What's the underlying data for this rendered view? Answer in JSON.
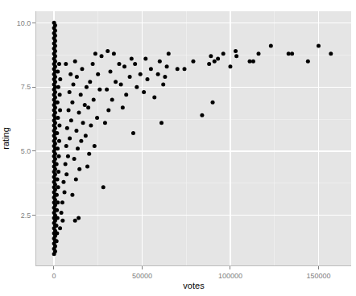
{
  "chart_data": {
    "type": "scatter",
    "x_label": "votes",
    "y_label": "rating",
    "color": "#000000",
    "marker": "circle",
    "grid": true,
    "xlim": [
      -10000,
      168500
    ],
    "ylim": [
      0.55,
      10.45
    ],
    "xticks": [
      0,
      50000,
      100000,
      150000
    ],
    "yticks": [
      2.5,
      {
        "value": 5,
        "label": "5.0"
      },
      7.5,
      {
        "value": 10,
        "label": "10.0"
      }
    ],
    "x": [
      100,
      100,
      100,
      100,
      100,
      100,
      100,
      100,
      100,
      100,
      100,
      100,
      100,
      100,
      100,
      100,
      100,
      100,
      100,
      100,
      100,
      100,
      100,
      100,
      100,
      100,
      100,
      100,
      100,
      100,
      100,
      100,
      100,
      100,
      100,
      100,
      100,
      100,
      100,
      100,
      100,
      100,
      100,
      100,
      100,
      100,
      700,
      700,
      700,
      700,
      700,
      700,
      700,
      700,
      700,
      700,
      700,
      700,
      700,
      700,
      700,
      700,
      700,
      700,
      700,
      700,
      700,
      700,
      700,
      700,
      700,
      700,
      700,
      700,
      700,
      700,
      700,
      700,
      700,
      700,
      700,
      700,
      700,
      700,
      700,
      700,
      700,
      700,
      700,
      700,
      700,
      1500,
      1800,
      1400,
      2000,
      1700,
      2200,
      1600,
      2400,
      1900,
      2600,
      1500,
      2800,
      2100,
      3000,
      1800,
      3200,
      2300,
      3500,
      2000,
      3300,
      2500,
      3600,
      2200,
      3000,
      3500,
      4200,
      5000,
      4800,
      6000,
      5500,
      7200,
      6500,
      8000,
      7000,
      9000,
      7500,
      9800,
      8300,
      10500,
      8800,
      11000,
      9500,
      6800,
      12000,
      14000,
      10500,
      12500,
      14500,
      11500,
      13500,
      15500,
      12800,
      16500,
      14200,
      17500,
      15200,
      18500,
      13000,
      16000,
      12000,
      19000,
      20000,
      23000,
      18000,
      21000,
      24500,
      19500,
      22500,
      26000,
      20500,
      25000,
      22000,
      27000,
      23500,
      28000,
      29000,
      31000,
      33000,
      30000,
      35000,
      32000,
      37000,
      34000,
      30500,
      39000,
      41000,
      38000,
      43000,
      40000,
      44000,
      45000,
      47000,
      49000,
      46000,
      51000,
      53000,
      55000,
      52000,
      57000,
      59000,
      61000,
      62000,
      60000,
      64000,
      65000,
      63000,
      70000,
      74000,
      79000,
      84000,
      88000,
      89000,
      90000,
      91000,
      93000,
      96000,
      100000,
      103000,
      103500,
      111000,
      113000,
      116000,
      123000,
      133000,
      135000,
      144000,
      150000,
      157000
    ],
    "values": [
      1.0,
      1.2,
      1.4,
      1.6,
      1.8,
      2.0,
      2.2,
      2.4,
      2.6,
      2.8,
      3.0,
      3.2,
      3.4,
      3.6,
      3.8,
      4.0,
      4.2,
      4.4,
      4.6,
      4.8,
      5.0,
      5.2,
      5.4,
      5.6,
      5.8,
      6.0,
      6.2,
      6.4,
      6.6,
      6.8,
      7.0,
      7.2,
      7.4,
      7.6,
      7.8,
      8.0,
      8.2,
      8.4,
      8.6,
      8.8,
      9.0,
      9.2,
      9.4,
      9.6,
      9.8,
      10.0,
      1.1,
      1.3,
      1.5,
      1.7,
      1.9,
      2.1,
      2.3,
      2.5,
      2.7,
      2.9,
      3.1,
      3.3,
      3.5,
      3.7,
      3.9,
      4.1,
      4.3,
      4.5,
      4.7,
      4.9,
      5.1,
      5.3,
      5.5,
      5.7,
      5.9,
      6.1,
      6.3,
      6.5,
      6.7,
      6.9,
      7.1,
      7.3,
      7.5,
      7.7,
      7.9,
      8.1,
      8.3,
      8.5,
      8.7,
      8.9,
      9.1,
      9.3,
      9.5,
      9.7,
      9.9,
      1.5,
      1.8,
      2.1,
      2.4,
      2.7,
      3.0,
      3.3,
      3.6,
      3.9,
      4.2,
      4.5,
      4.8,
      5.1,
      5.4,
      5.7,
      6.0,
      6.3,
      6.6,
      6.9,
      7.2,
      7.5,
      7.8,
      8.1,
      8.4,
      2.0,
      2.6,
      2.3,
      3.0,
      3.4,
      3.8,
      4.1,
      4.5,
      4.8,
      5.2,
      5.5,
      5.9,
      6.2,
      6.6,
      6.9,
      7.3,
      7.6,
      8.0,
      8.4,
      2.3,
      2.4,
      3.3,
      3.9,
      4.3,
      4.7,
      5.1,
      5.4,
      5.8,
      6.1,
      6.5,
      6.8,
      7.2,
      7.5,
      7.9,
      8.2,
      8.5,
      4.4,
      4.9,
      5.2,
      5.6,
      6.0,
      6.3,
      6.7,
      7.0,
      7.4,
      7.7,
      8.0,
      8.4,
      8.7,
      8.8,
      3.6,
      6.1,
      6.6,
      7.0,
      7.4,
      7.7,
      8.1,
      8.4,
      8.8,
      8.9,
      6.7,
      7.2,
      7.6,
      7.9,
      8.3,
      8.6,
      5.7,
      7.5,
      8.0,
      8.4,
      7.3,
      7.8,
      8.2,
      8.6,
      7.1,
      8.0,
      6.1,
      7.6,
      8.5,
      8.3,
      8.8,
      7.9,
      8.2,
      8.2,
      8.5,
      6.4,
      8.4,
      8.7,
      6.9,
      8.5,
      8.6,
      8.8,
      8.3,
      8.9,
      8.7,
      8.5,
      8.5,
      8.8,
      9.1,
      8.8,
      8.8,
      8.5,
      9.1,
      8.8
    ]
  }
}
